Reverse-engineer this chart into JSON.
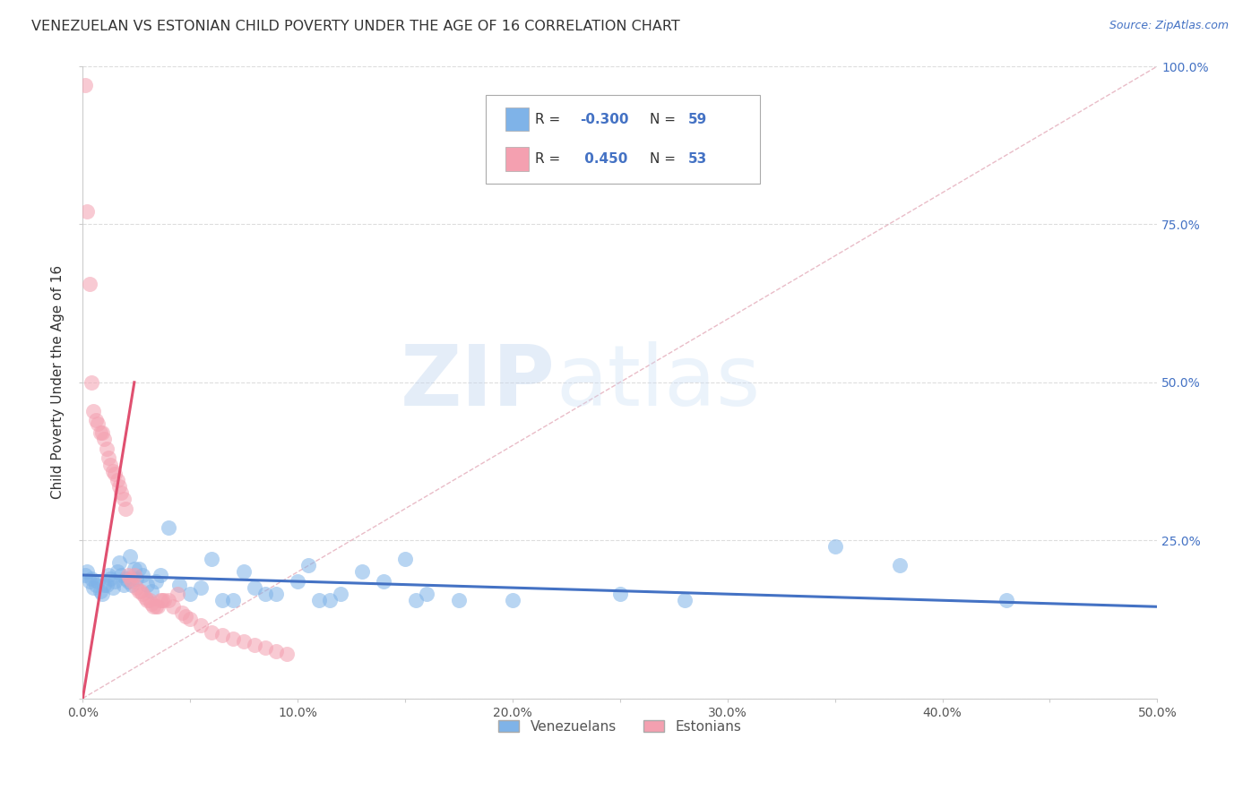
{
  "title": "VENEZUELAN VS ESTONIAN CHILD POVERTY UNDER THE AGE OF 16 CORRELATION CHART",
  "source": "Source: ZipAtlas.com",
  "ylabel": "Child Poverty Under the Age of 16",
  "xlim": [
    0.0,
    0.5
  ],
  "ylim": [
    0.0,
    1.0
  ],
  "right_ytick_color": "#4472c4",
  "venezuelan_color": "#7fb3e8",
  "estonian_color": "#f4a0b0",
  "venezuelan_line_color": "#4472c4",
  "estonian_line_color": "#e05070",
  "diagonal_color": "#c8c8c8",
  "R_venezuelan": -0.3,
  "N_venezuelan": 59,
  "R_estonian": 0.45,
  "N_estonian": 53,
  "legend_label_venezuelan": "Venezuelans",
  "legend_label_estonian": "Estonians",
  "watermark_zip": "ZIP",
  "watermark_atlas": "atlas",
  "background_color": "#ffffff",
  "grid_color": "#dddddd",
  "venezuelan_points": [
    [
      0.001,
      0.195
    ],
    [
      0.002,
      0.2
    ],
    [
      0.003,
      0.185
    ],
    [
      0.004,
      0.19
    ],
    [
      0.005,
      0.175
    ],
    [
      0.006,
      0.18
    ],
    [
      0.007,
      0.185
    ],
    [
      0.008,
      0.17
    ],
    [
      0.009,
      0.165
    ],
    [
      0.01,
      0.18
    ],
    [
      0.011,
      0.18
    ],
    [
      0.012,
      0.195
    ],
    [
      0.013,
      0.19
    ],
    [
      0.014,
      0.175
    ],
    [
      0.015,
      0.185
    ],
    [
      0.016,
      0.2
    ],
    [
      0.017,
      0.215
    ],
    [
      0.018,
      0.195
    ],
    [
      0.019,
      0.18
    ],
    [
      0.02,
      0.19
    ],
    [
      0.021,
      0.185
    ],
    [
      0.022,
      0.225
    ],
    [
      0.023,
      0.18
    ],
    [
      0.024,
      0.205
    ],
    [
      0.025,
      0.19
    ],
    [
      0.026,
      0.205
    ],
    [
      0.028,
      0.195
    ],
    [
      0.03,
      0.18
    ],
    [
      0.032,
      0.17
    ],
    [
      0.034,
      0.185
    ],
    [
      0.036,
      0.195
    ],
    [
      0.04,
      0.27
    ],
    [
      0.045,
      0.18
    ],
    [
      0.05,
      0.165
    ],
    [
      0.055,
      0.175
    ],
    [
      0.06,
      0.22
    ],
    [
      0.065,
      0.155
    ],
    [
      0.07,
      0.155
    ],
    [
      0.075,
      0.2
    ],
    [
      0.08,
      0.175
    ],
    [
      0.085,
      0.165
    ],
    [
      0.09,
      0.165
    ],
    [
      0.1,
      0.185
    ],
    [
      0.105,
      0.21
    ],
    [
      0.11,
      0.155
    ],
    [
      0.115,
      0.155
    ],
    [
      0.12,
      0.165
    ],
    [
      0.13,
      0.2
    ],
    [
      0.14,
      0.185
    ],
    [
      0.15,
      0.22
    ],
    [
      0.155,
      0.155
    ],
    [
      0.16,
      0.165
    ],
    [
      0.175,
      0.155
    ],
    [
      0.2,
      0.155
    ],
    [
      0.25,
      0.165
    ],
    [
      0.28,
      0.155
    ],
    [
      0.35,
      0.24
    ],
    [
      0.38,
      0.21
    ],
    [
      0.43,
      0.155
    ]
  ],
  "estonian_points": [
    [
      0.001,
      0.97
    ],
    [
      0.002,
      0.77
    ],
    [
      0.003,
      0.655
    ],
    [
      0.004,
      0.5
    ],
    [
      0.005,
      0.455
    ],
    [
      0.006,
      0.44
    ],
    [
      0.007,
      0.435
    ],
    [
      0.008,
      0.42
    ],
    [
      0.009,
      0.42
    ],
    [
      0.01,
      0.41
    ],
    [
      0.011,
      0.395
    ],
    [
      0.012,
      0.38
    ],
    [
      0.013,
      0.37
    ],
    [
      0.014,
      0.36
    ],
    [
      0.015,
      0.355
    ],
    [
      0.016,
      0.345
    ],
    [
      0.017,
      0.335
    ],
    [
      0.018,
      0.325
    ],
    [
      0.019,
      0.315
    ],
    [
      0.02,
      0.3
    ],
    [
      0.021,
      0.195
    ],
    [
      0.022,
      0.19
    ],
    [
      0.023,
      0.185
    ],
    [
      0.024,
      0.195
    ],
    [
      0.025,
      0.175
    ],
    [
      0.026,
      0.17
    ],
    [
      0.027,
      0.17
    ],
    [
      0.028,
      0.165
    ],
    [
      0.029,
      0.16
    ],
    [
      0.03,
      0.155
    ],
    [
      0.031,
      0.155
    ],
    [
      0.032,
      0.15
    ],
    [
      0.033,
      0.145
    ],
    [
      0.034,
      0.145
    ],
    [
      0.035,
      0.145
    ],
    [
      0.036,
      0.155
    ],
    [
      0.037,
      0.155
    ],
    [
      0.038,
      0.155
    ],
    [
      0.04,
      0.155
    ],
    [
      0.042,
      0.145
    ],
    [
      0.044,
      0.165
    ],
    [
      0.046,
      0.135
    ],
    [
      0.048,
      0.13
    ],
    [
      0.05,
      0.125
    ],
    [
      0.055,
      0.115
    ],
    [
      0.06,
      0.105
    ],
    [
      0.065,
      0.1
    ],
    [
      0.07,
      0.095
    ],
    [
      0.075,
      0.09
    ],
    [
      0.08,
      0.085
    ],
    [
      0.085,
      0.08
    ],
    [
      0.09,
      0.075
    ],
    [
      0.095,
      0.07
    ]
  ],
  "estonian_line_x": [
    0.0,
    0.024
  ],
  "estonian_line_y": [
    0.0,
    0.5
  ],
  "venezuelan_line_x": [
    0.0,
    0.5
  ],
  "venezuelan_line_y": [
    0.195,
    0.145
  ]
}
